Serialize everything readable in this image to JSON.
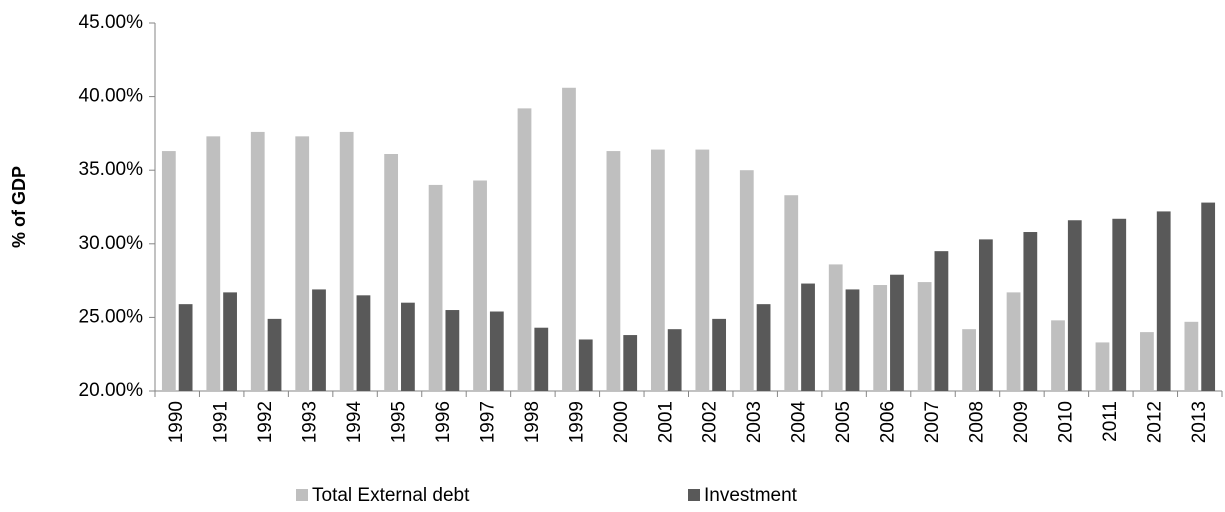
{
  "chart_data": {
    "type": "bar",
    "y_label": "% of GDP",
    "categories": [
      "1990",
      "1991",
      "1992",
      "1993",
      "1994",
      "1995",
      "1996",
      "1997",
      "1998",
      "1999",
      "2000",
      "2001",
      "2002",
      "2003",
      "2004",
      "2005",
      "2006",
      "2007",
      "2008",
      "2009",
      "2010",
      "2011",
      "2012",
      "2013"
    ],
    "series": [
      {
        "name": "Total External debt",
        "color": "#bfbfbf",
        "values": [
          36.3,
          37.3,
          37.6,
          37.3,
          37.6,
          36.1,
          34.0,
          34.3,
          39.2,
          40.6,
          36.3,
          36.4,
          36.4,
          35.0,
          33.3,
          28.6,
          27.2,
          27.4,
          24.2,
          26.7,
          24.8,
          23.3,
          24.0,
          24.7
        ]
      },
      {
        "name": "Investment",
        "color": "#595959",
        "values": [
          25.9,
          26.7,
          24.9,
          26.9,
          26.5,
          26.0,
          25.5,
          25.4,
          24.3,
          23.5,
          23.8,
          24.2,
          24.9,
          25.9,
          27.3,
          26.9,
          27.9,
          29.5,
          30.3,
          30.8,
          31.6,
          31.7,
          32.2,
          32.8
        ]
      }
    ],
    "ylim": [
      20,
      45
    ],
    "yticks": [
      {
        "value": 20,
        "label": "20.00%"
      },
      {
        "value": 25,
        "label": "25.00%"
      },
      {
        "value": 30,
        "label": "30.00%"
      },
      {
        "value": 35,
        "label": "35.00%"
      },
      {
        "value": 40,
        "label": "40.00%"
      },
      {
        "value": 45,
        "label": "45.00%"
      }
    ],
    "grid": false,
    "legend": "bottom"
  }
}
